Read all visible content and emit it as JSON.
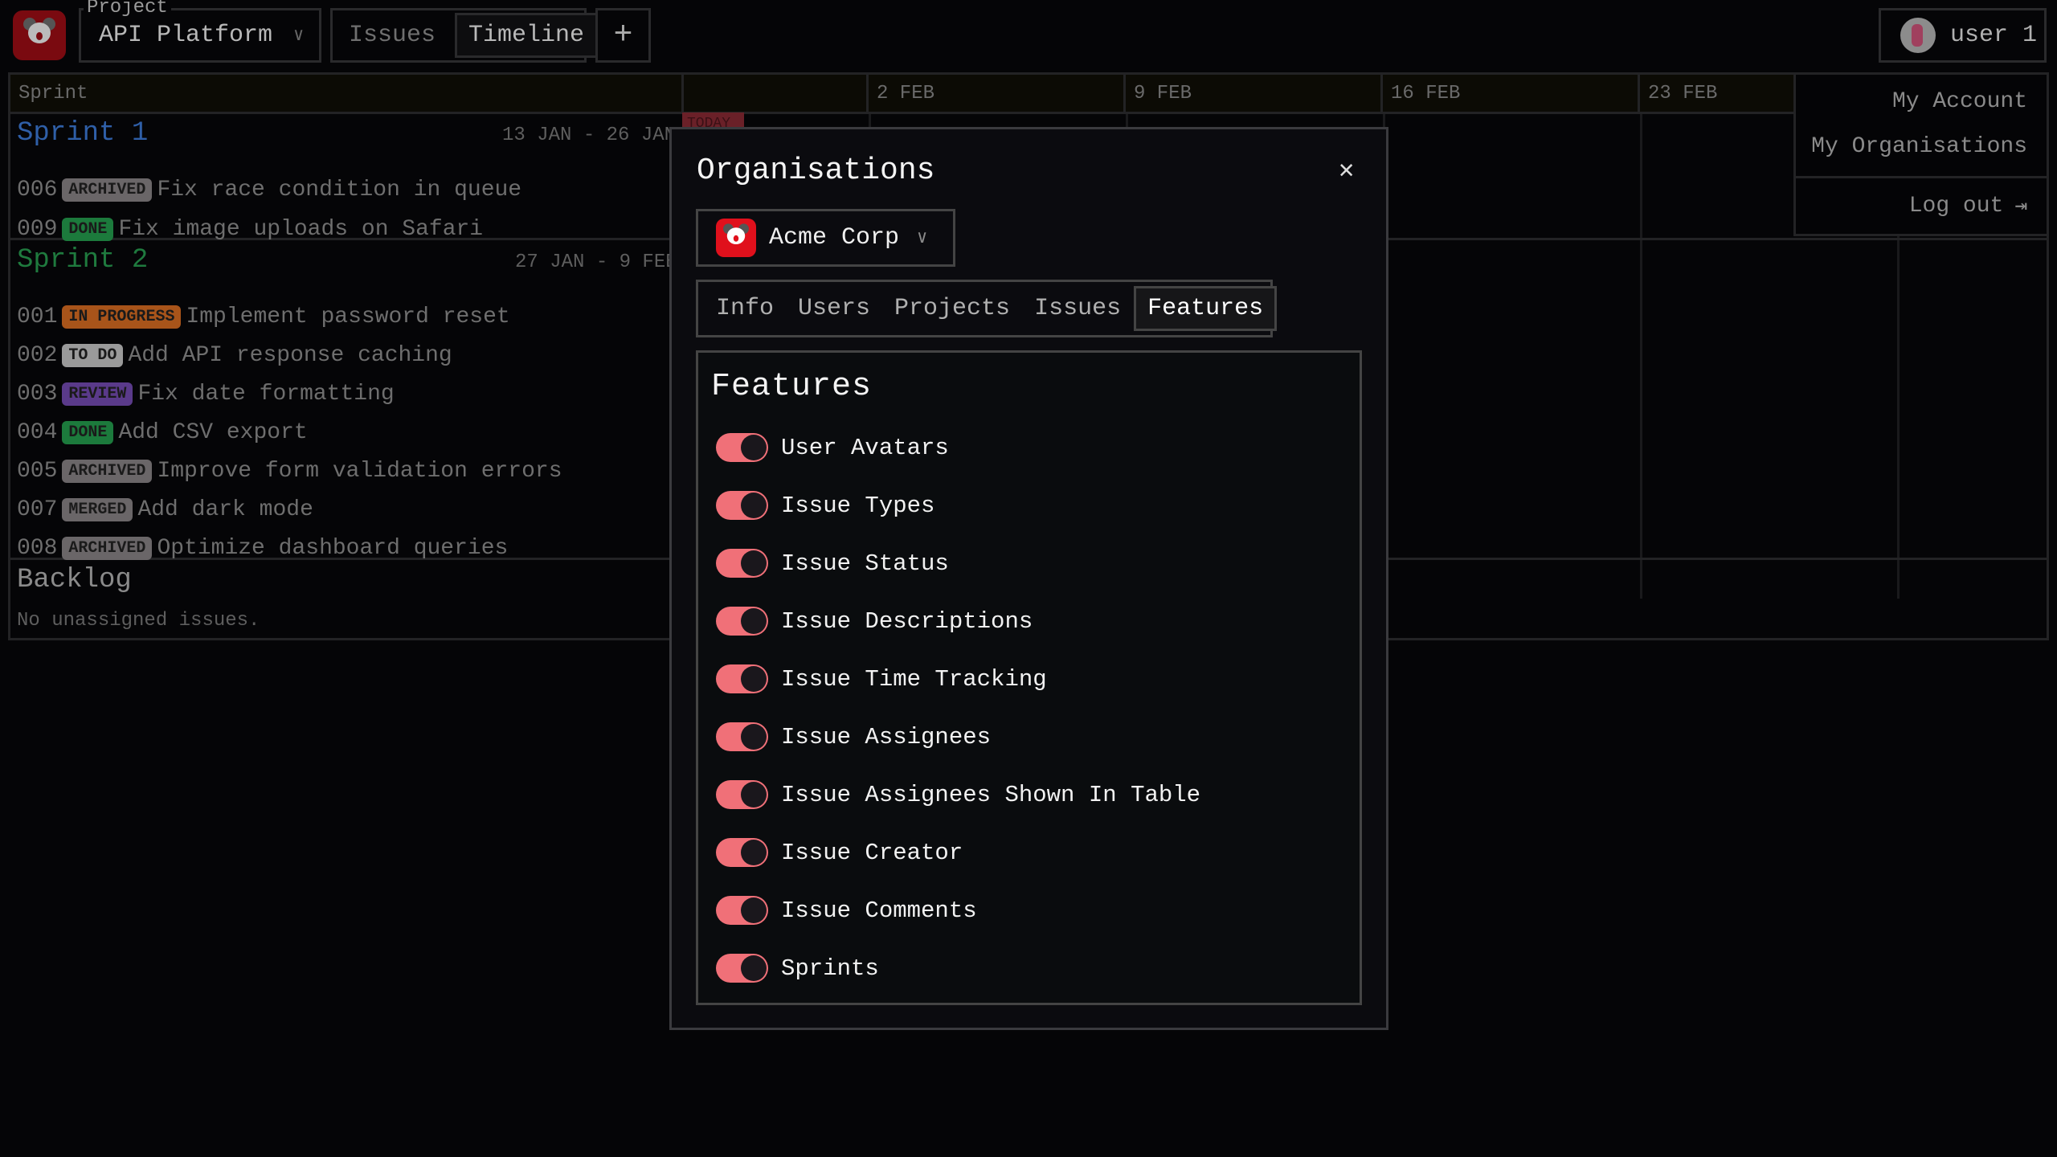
{
  "header": {
    "project_label": "Project",
    "project_value": "API Platform",
    "view_tabs": [
      "Issues",
      "Timeline"
    ],
    "active_view": "Timeline",
    "add_label": "+",
    "user_name": "user 1"
  },
  "timeline": {
    "sprint_column": "Sprint",
    "weeks": [
      "2 FEB",
      "9 FEB",
      "16 FEB",
      "23 FEB"
    ],
    "today_label": "TODAY",
    "sprints": [
      {
        "name": "Sprint 1",
        "dates": "13 JAN - 26 JAN",
        "color": "#2f5fa8",
        "issues": [
          {
            "id": "006",
            "status": "ARCHIVED",
            "title": "Fix race condition in queue"
          },
          {
            "id": "009",
            "status": "DONE",
            "title": "Fix image uploads on Safari"
          }
        ]
      },
      {
        "name": "Sprint 2",
        "dates": "27 JAN - 9 FEB",
        "color": "#1f7a3e",
        "issues": [
          {
            "id": "001",
            "status": "IN PROGRESS",
            "title": "Implement password reset"
          },
          {
            "id": "002",
            "status": "TO DO",
            "title": "Add API response caching"
          },
          {
            "id": "003",
            "status": "REVIEW",
            "title": "Fix date formatting"
          },
          {
            "id": "004",
            "status": "DONE",
            "title": "Add CSV export"
          },
          {
            "id": "005",
            "status": "ARCHIVED",
            "title": "Improve form validation errors"
          },
          {
            "id": "007",
            "status": "MERGED",
            "title": "Add dark mode"
          },
          {
            "id": "008",
            "status": "ARCHIVED",
            "title": "Optimize dashboard queries"
          }
        ]
      }
    ],
    "backlog": {
      "title": "Backlog",
      "empty_text": "No unassigned issues."
    },
    "status_colors": {
      "ARCHIVED": "#6a6668",
      "DONE": "#1c7a3c",
      "IN PROGRESS": "#a8541a",
      "TO DO": "#9a9a9a",
      "REVIEW": "#5a3a8a",
      "MERGED": "#6a6668"
    }
  },
  "user_menu": {
    "items": [
      "My Account",
      "My Organisations"
    ],
    "logout": "Log out"
  },
  "dialog": {
    "title": "Organisations",
    "org": "Acme Corp",
    "tabs": [
      "Info",
      "Users",
      "Projects",
      "Issues",
      "Features"
    ],
    "active_tab": "Features",
    "features_title": "Features",
    "features": [
      {
        "label": "User Avatars",
        "enabled": true
      },
      {
        "label": "Issue Types",
        "enabled": true
      },
      {
        "label": "Issue Status",
        "enabled": true
      },
      {
        "label": "Issue Descriptions",
        "enabled": true
      },
      {
        "label": "Issue Time Tracking",
        "enabled": true
      },
      {
        "label": "Issue Assignees",
        "enabled": true
      },
      {
        "label": "Issue Assignees Shown In Table",
        "enabled": true
      },
      {
        "label": "Issue Creator",
        "enabled": true
      },
      {
        "label": "Issue Comments",
        "enabled": true
      },
      {
        "label": "Sprints",
        "enabled": true
      }
    ],
    "toggle_color": "#f07078"
  }
}
